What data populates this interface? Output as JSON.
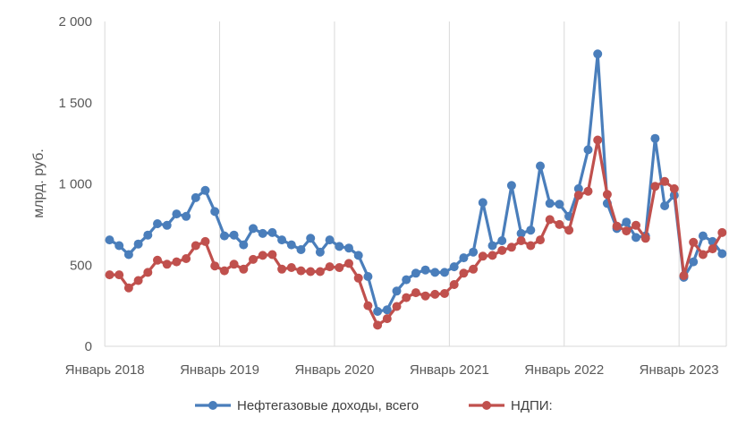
{
  "chart_data": {
    "type": "line",
    "title": "",
    "xlabel": "",
    "ylabel": "млрд. руб.",
    "ylim": [
      0,
      2000
    ],
    "y_ticks": [
      0,
      500,
      1000,
      1500,
      2000
    ],
    "y_tick_labels": [
      "0",
      "500",
      "1 000",
      "1 500",
      "2 000"
    ],
    "x_ticks": [
      "2018-01",
      "2019-01",
      "2020-01",
      "2021-01",
      "2022-01",
      "2023-01"
    ],
    "x_tick_labels": [
      "Январь 2018",
      "Январь 2019",
      "Январь 2020",
      "Январь 2021",
      "Январь 2022",
      "Январь 2023"
    ],
    "x": [
      "2018-01",
      "2018-02",
      "2018-03",
      "2018-04",
      "2018-05",
      "2018-06",
      "2018-07",
      "2018-08",
      "2018-09",
      "2018-10",
      "2018-11",
      "2018-12",
      "2019-01",
      "2019-02",
      "2019-03",
      "2019-04",
      "2019-05",
      "2019-06",
      "2019-07",
      "2019-08",
      "2019-09",
      "2019-10",
      "2019-11",
      "2019-12",
      "2020-01",
      "2020-02",
      "2020-03",
      "2020-04",
      "2020-05",
      "2020-06",
      "2020-07",
      "2020-08",
      "2020-09",
      "2020-10",
      "2020-11",
      "2020-12",
      "2021-01",
      "2021-02",
      "2021-03",
      "2021-04",
      "2021-05",
      "2021-06",
      "2021-07",
      "2021-08",
      "2021-09",
      "2021-10",
      "2021-11",
      "2021-12",
      "2022-01",
      "2022-02",
      "2022-03",
      "2022-04",
      "2022-05",
      "2022-06",
      "2022-07",
      "2022-08",
      "2022-09",
      "2022-10",
      "2022-11",
      "2022-12",
      "2023-01",
      "2023-02",
      "2023-03",
      "2023-04",
      "2023-05"
    ],
    "series": [
      {
        "name": "Нефтегазовые доходы, всего",
        "color": "#4a7ebb",
        "values": [
          655,
          620,
          565,
          630,
          685,
          755,
          745,
          815,
          800,
          915,
          960,
          830,
          680,
          685,
          625,
          725,
          695,
          700,
          655,
          625,
          595,
          665,
          580,
          655,
          615,
          605,
          560,
          430,
          215,
          225,
          340,
          410,
          450,
          470,
          455,
          455,
          490,
          545,
          580,
          885,
          620,
          650,
          990,
          695,
          715,
          1110,
          880,
          875,
          800,
          970,
          1210,
          1800,
          880,
          725,
          765,
          670,
          680,
          1280,
          865,
          930,
          425,
          520,
          680,
          645,
          570
        ]
      },
      {
        "name": "НДПИ:",
        "color": "#c0504d",
        "values": [
          440,
          440,
          360,
          405,
          455,
          530,
          505,
          520,
          540,
          620,
          645,
          495,
          465,
          505,
          475,
          535,
          560,
          565,
          475,
          485,
          465,
          460,
          460,
          490,
          485,
          510,
          420,
          250,
          130,
          170,
          245,
          300,
          330,
          310,
          320,
          325,
          380,
          450,
          475,
          555,
          560,
          590,
          610,
          650,
          620,
          655,
          780,
          750,
          715,
          930,
          955,
          1270,
          935,
          740,
          710,
          745,
          665,
          985,
          1015,
          970,
          435,
          640,
          565,
          600,
          700
        ]
      }
    ],
    "legend": "bottom",
    "grid": "vertical at year boundaries"
  }
}
